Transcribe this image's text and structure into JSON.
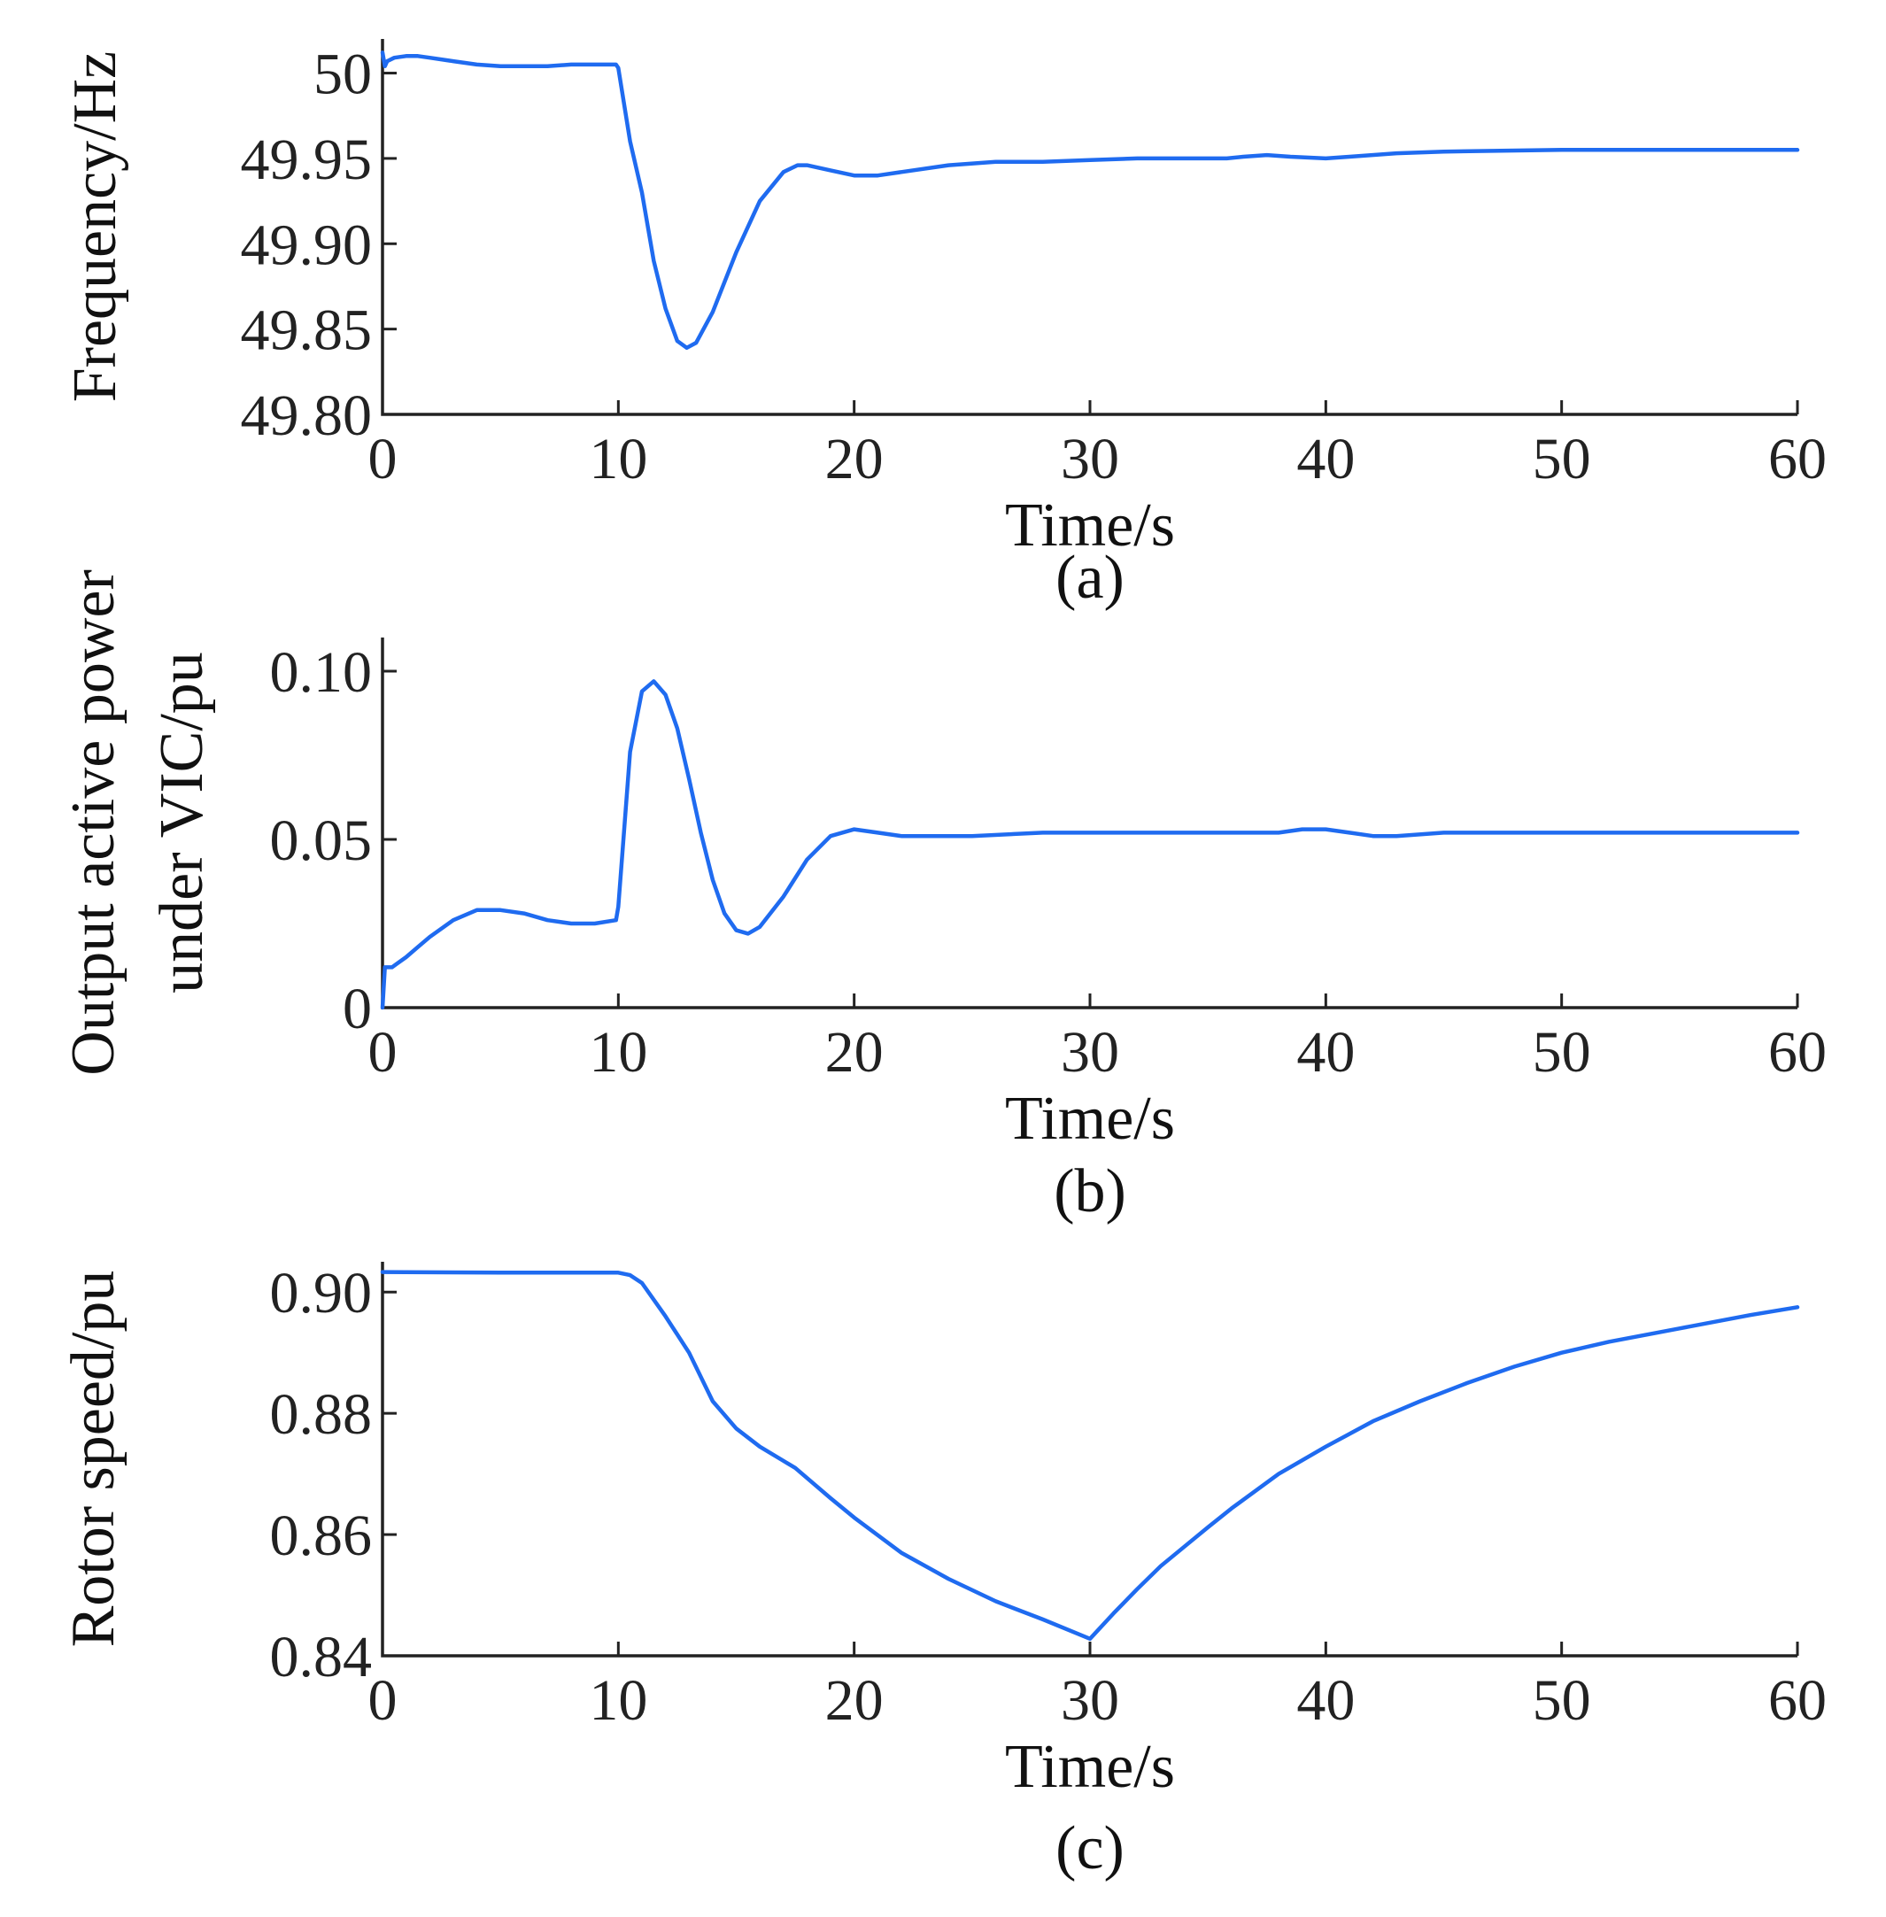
{
  "figure": {
    "line_color": "#1f6bf0",
    "text_color": "#222222"
  },
  "chart_data": [
    {
      "type": "line",
      "title": "",
      "caption": "(a)",
      "xlabel": "Time/s",
      "ylabel": "Frequency/Hz",
      "xlim": [
        0,
        60
      ],
      "ylim": [
        49.8,
        50.02
      ],
      "grid": false,
      "x_ticks": [
        0,
        10,
        20,
        30,
        40,
        50,
        60
      ],
      "x_tick_labels": [
        "0",
        "10",
        "20",
        "30",
        "40",
        "50",
        "60"
      ],
      "y_ticks": [
        50.0,
        49.95,
        49.9,
        49.85,
        49.8
      ],
      "y_tick_labels": [
        "50",
        "49.95",
        "49.90",
        "49.85",
        "49.80"
      ],
      "series": [
        {
          "name": "Frequency",
          "x": [
            0,
            0.1,
            0.2,
            0.5,
            1,
            1.5,
            2,
            3,
            4,
            5,
            6,
            7,
            8,
            9,
            9.9,
            10,
            10.5,
            11,
            11.5,
            12,
            12.5,
            12.9,
            13.3,
            14,
            15,
            16,
            17,
            17.6,
            18,
            19,
            20,
            21,
            22,
            24,
            26,
            28,
            30,
            32,
            34,
            35.8,
            36.5,
            37.5,
            38.5,
            40,
            41,
            43,
            45,
            50,
            55,
            60
          ],
          "values": [
            50.012,
            50.004,
            50.007,
            50.009,
            50.01,
            50.01,
            50.009,
            50.007,
            50.005,
            50.004,
            50.004,
            50.004,
            50.005,
            50.005,
            50.005,
            50.003,
            49.96,
            49.93,
            49.89,
            49.862,
            49.843,
            49.839,
            49.842,
            49.86,
            49.895,
            49.925,
            49.942,
            49.946,
            49.946,
            49.943,
            49.94,
            49.94,
            49.942,
            49.946,
            49.948,
            49.948,
            49.949,
            49.95,
            49.95,
            49.95,
            49.951,
            49.952,
            49.951,
            49.95,
            49.951,
            49.953,
            49.954,
            49.955,
            49.955,
            49.955
          ]
        }
      ]
    },
    {
      "type": "line",
      "title": "",
      "caption": "(b)",
      "xlabel": "Time/s",
      "ylabel": "Output active power under VIC/pu",
      "ylabel_lines": [
        "Output active power",
        "under VIC/pu"
      ],
      "xlim": [
        0,
        60
      ],
      "ylim": [
        0,
        0.11
      ],
      "grid": false,
      "x_ticks": [
        0,
        10,
        20,
        30,
        40,
        50,
        60
      ],
      "x_tick_labels": [
        "0",
        "10",
        "20",
        "30",
        "40",
        "50",
        "60"
      ],
      "y_ticks": [
        0.1,
        0.05,
        0
      ],
      "y_tick_labels": [
        "0.10",
        "0.05",
        "0"
      ],
      "series": [
        {
          "name": "Output active power",
          "x": [
            0,
            0.1,
            0.2,
            0.4,
            0.6,
            1,
            1.5,
            2,
            3,
            4,
            5,
            6,
            7,
            8,
            9,
            9.9,
            10,
            10.5,
            11,
            11.5,
            12,
            12.5,
            13,
            13.5,
            14,
            14.5,
            15,
            15.5,
            16,
            17,
            18,
            19,
            20,
            21,
            22,
            23,
            25,
            28,
            30,
            35,
            38,
            39,
            40,
            41,
            42,
            43,
            45,
            50,
            55,
            60
          ],
          "values": [
            0.0,
            0.012,
            0.012,
            0.012,
            0.013,
            0.015,
            0.018,
            0.021,
            0.026,
            0.029,
            0.029,
            0.028,
            0.026,
            0.025,
            0.025,
            0.026,
            0.03,
            0.076,
            0.094,
            0.097,
            0.093,
            0.083,
            0.068,
            0.052,
            0.038,
            0.028,
            0.023,
            0.022,
            0.024,
            0.033,
            0.044,
            0.051,
            0.053,
            0.052,
            0.051,
            0.051,
            0.051,
            0.052,
            0.052,
            0.052,
            0.052,
            0.053,
            0.053,
            0.052,
            0.051,
            0.051,
            0.052,
            0.052,
            0.052,
            0.052
          ]
        }
      ]
    },
    {
      "type": "line",
      "title": "",
      "caption": "(c)",
      "xlabel": "Time/s",
      "ylabel": "Rotor speed/pu",
      "xlim": [
        0,
        60
      ],
      "ylim": [
        0.84,
        0.905
      ],
      "grid": false,
      "x_ticks": [
        0,
        10,
        20,
        30,
        40,
        50,
        60
      ],
      "x_tick_labels": [
        "0",
        "10",
        "20",
        "30",
        "40",
        "50",
        "60"
      ],
      "y_ticks": [
        0.9,
        0.88,
        0.86,
        0.84
      ],
      "y_tick_labels": [
        "0.90",
        "0.88",
        "0.86",
        "0.84"
      ],
      "series": [
        {
          "name": "Rotor speed",
          "x": [
            0,
            5,
            10,
            10.5,
            11,
            12,
            13,
            14,
            15,
            16,
            17.5,
            19,
            20,
            22,
            24,
            26,
            28,
            30,
            31,
            32,
            33,
            34,
            35,
            36,
            38,
            40,
            42,
            44,
            46,
            48,
            50,
            52,
            55,
            58,
            60
          ],
          "values": [
            0.9033,
            0.9032,
            0.9032,
            0.9028,
            0.9015,
            0.896,
            0.89,
            0.882,
            0.8775,
            0.8745,
            0.871,
            0.866,
            0.8628,
            0.857,
            0.8527,
            0.849,
            0.846,
            0.8428,
            0.847,
            0.851,
            0.8548,
            0.858,
            0.8612,
            0.8643,
            0.87,
            0.8745,
            0.8787,
            0.882,
            0.885,
            0.8877,
            0.89,
            0.8918,
            0.894,
            0.8962,
            0.8975
          ]
        }
      ]
    }
  ]
}
